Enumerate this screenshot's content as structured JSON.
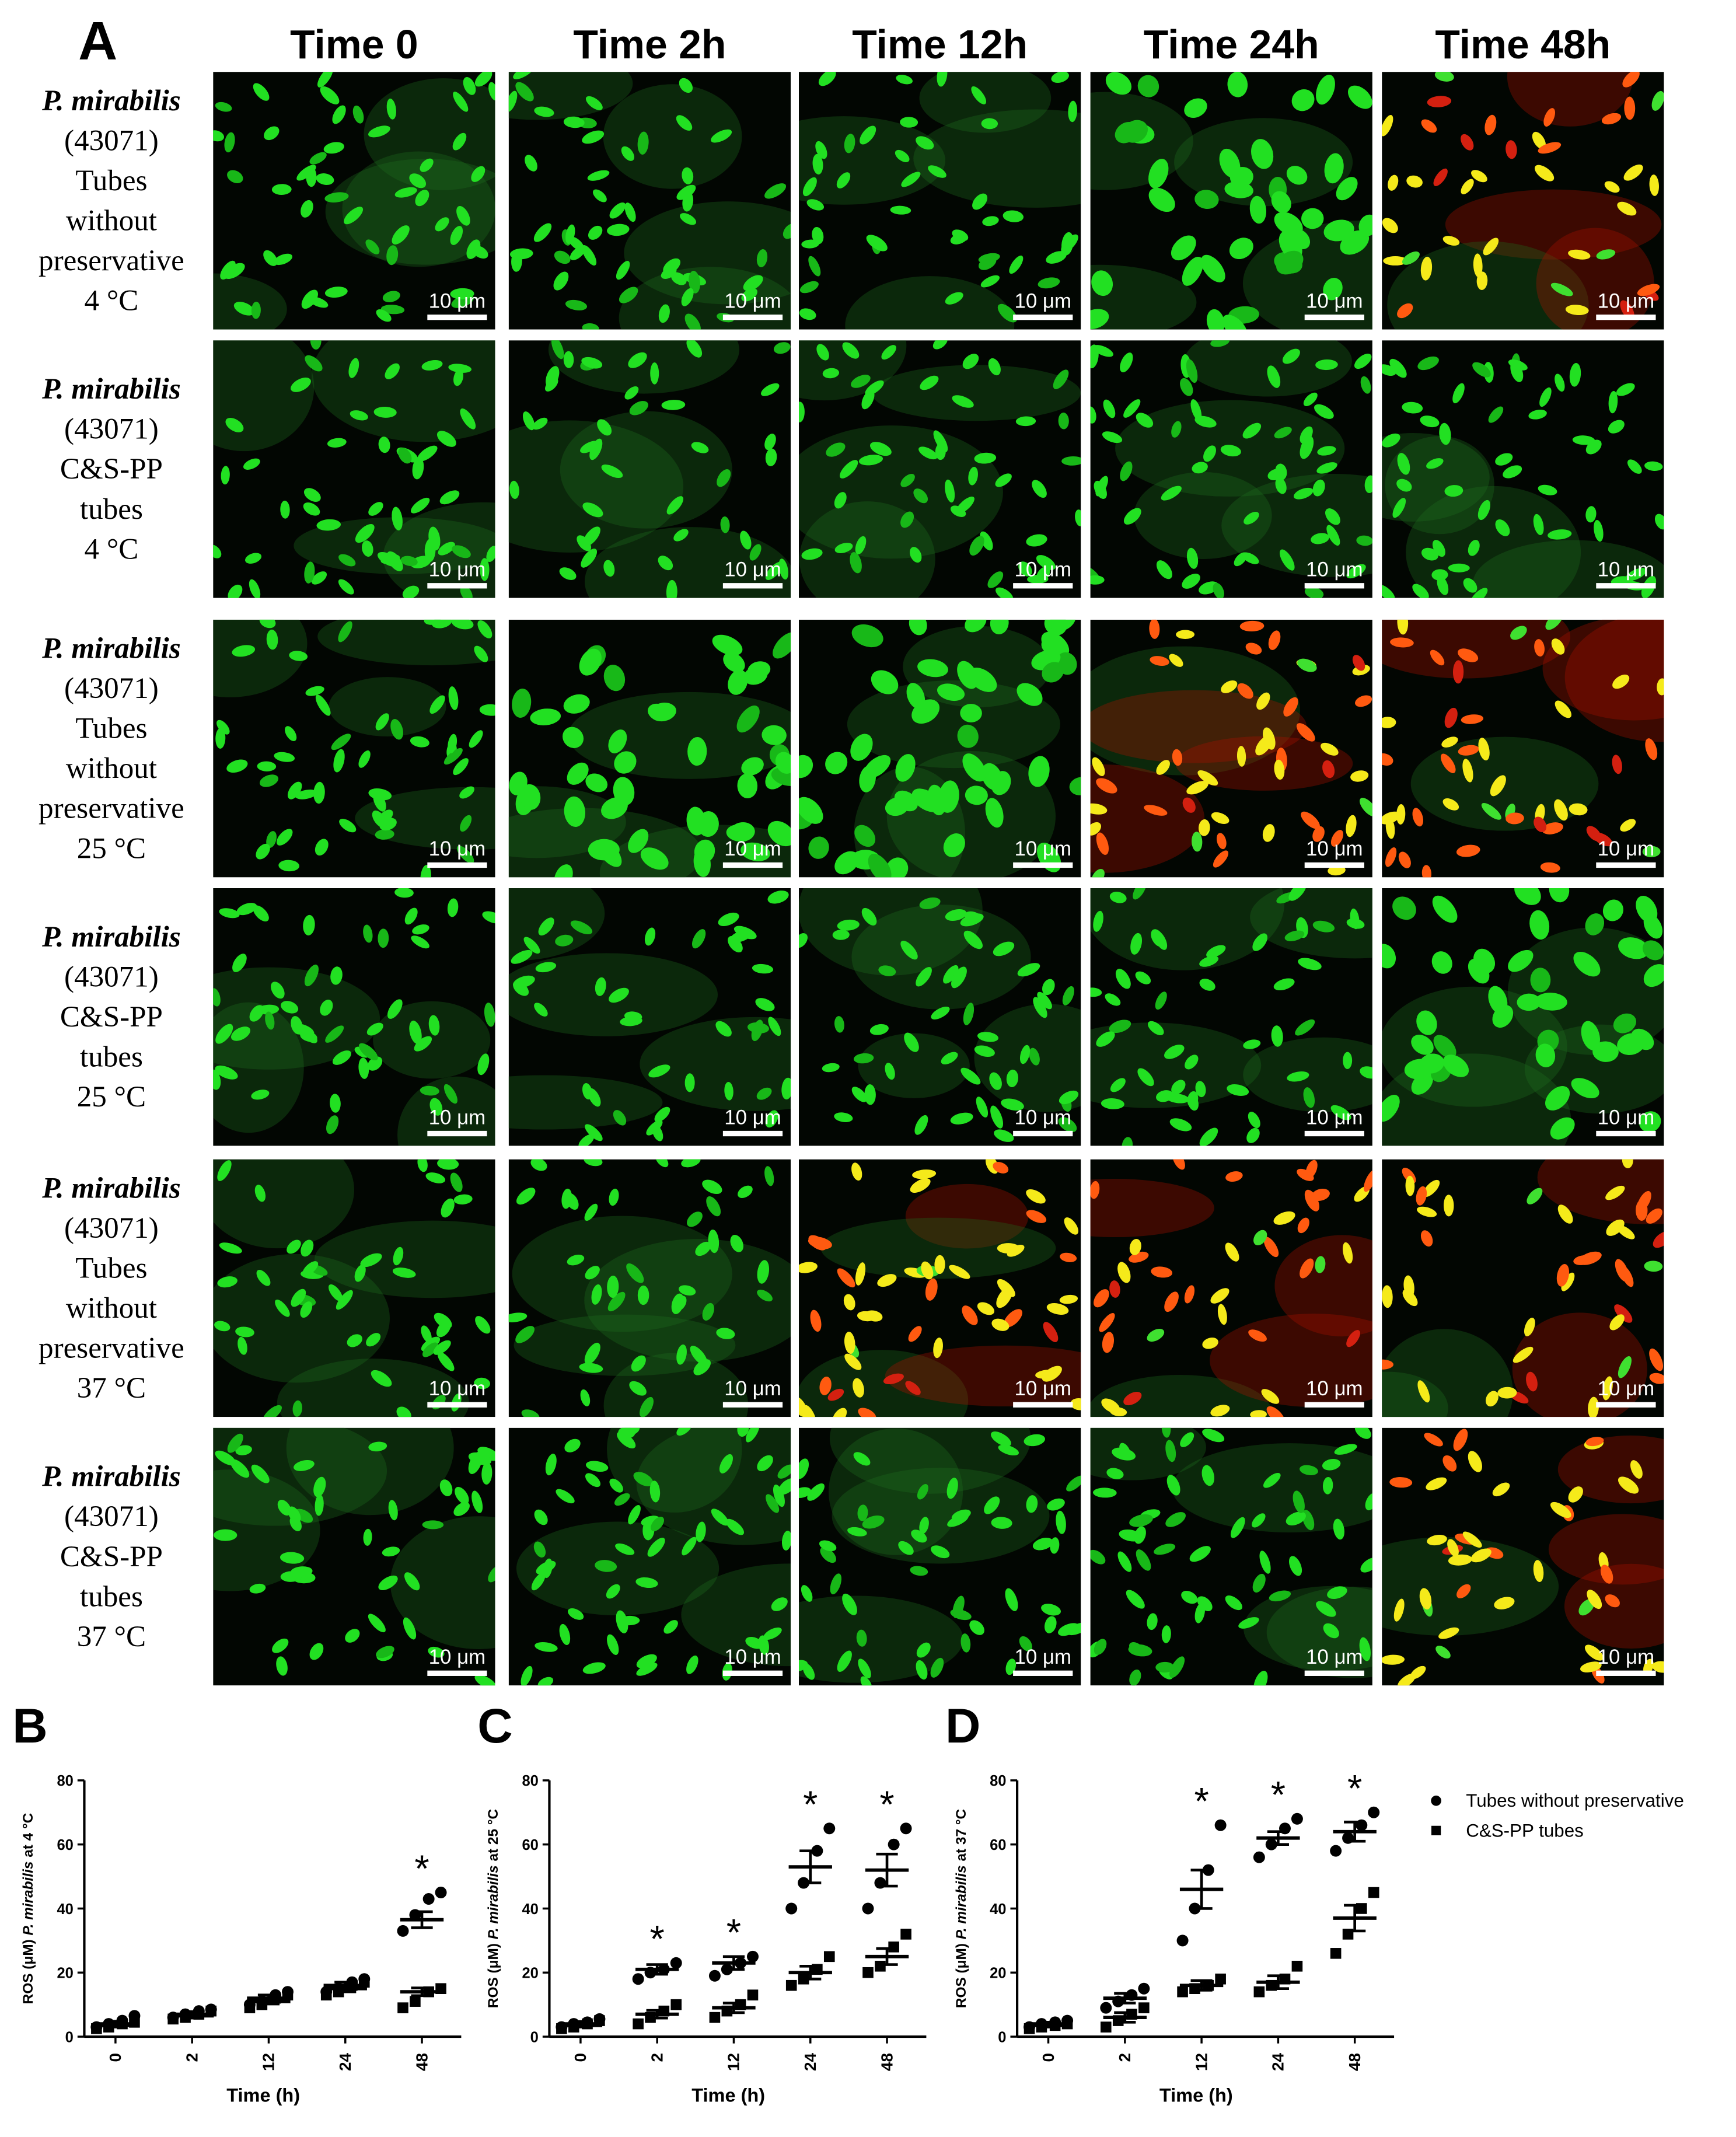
{
  "figure": {
    "panel_label": "A",
    "columns": [
      "Time 0",
      "Time 2h",
      "Time 12h",
      "Time 24h",
      "Time 48h"
    ],
    "rows": [
      [
        "P. mirabilis",
        "(43071)",
        "Tubes",
        "without",
        "preservative",
        "4 °C"
      ],
      [
        "P. mirabilis",
        "(43071)",
        "C&S-PP",
        "tubes",
        "4 °C"
      ],
      [
        "P. mirabilis",
        "(43071)",
        "Tubes",
        "without",
        "preservative",
        "25 °C"
      ],
      [
        "P. mirabilis",
        "(43071)",
        "C&S-PP",
        "tubes",
        "25 °C"
      ],
      [
        "P. mirabilis",
        "(43071)",
        "Tubes",
        "without",
        "preservative",
        "37 °C"
      ],
      [
        "P. mirabilis",
        "(43071)",
        "C&S-PP",
        "tubes",
        "37 °C"
      ]
    ],
    "scale_bar": "10 μm"
  },
  "chart_data": [
    {
      "type": "scatter",
      "panel_label": "B",
      "categories": [
        "0",
        "2",
        "12",
        "24",
        "48"
      ],
      "xlabel": "Time (h)",
      "ylabel": [
        "ROS (μM) ",
        "P. mirabilis",
        " at 4 °C"
      ],
      "ylim": [
        0,
        80
      ],
      "yticks": [
        0,
        20,
        40,
        60,
        80
      ],
      "series": [
        {
          "marker": "circle",
          "color": "#000000",
          "values": [
            4,
            7,
            12,
            16,
            36.5
          ],
          "errors": [
            0.8,
            0.8,
            1,
            1,
            2.5
          ],
          "points": [
            [
              3,
              4,
              5,
              6.5
            ],
            [
              6,
              7,
              8,
              8.5
            ],
            [
              10,
              11,
              13,
              14
            ],
            [
              14,
              15,
              17,
              18
            ],
            [
              33,
              38,
              43,
              45
            ]
          ]
        },
        {
          "marker": "square",
          "color": "#000000",
          "values": [
            3.5,
            6.5,
            11,
            15,
            14
          ],
          "errors": [
            0.5,
            0.7,
            0.8,
            1,
            1.2
          ],
          "points": [
            [
              2.5,
              3,
              4,
              4.5
            ],
            [
              5.5,
              6,
              7,
              8
            ],
            [
              9,
              10,
              12,
              13
            ],
            [
              13,
              14,
              16,
              17
            ],
            [
              9,
              11,
              14,
              15
            ]
          ]
        }
      ],
      "annotations": [
        {
          "category": "48",
          "text": "*"
        }
      ]
    },
    {
      "type": "scatter",
      "panel_label": "C",
      "categories": [
        "0",
        "2",
        "12",
        "24",
        "48"
      ],
      "xlabel": "Time (h)",
      "ylabel": [
        "ROS (μM) ",
        "P. mirabilis",
        " at 25 °C"
      ],
      "ylim": [
        0,
        80
      ],
      "yticks": [
        0,
        20,
        40,
        60,
        80
      ],
      "series": [
        {
          "marker": "circle",
          "color": "#000000",
          "values": [
            4,
            21,
            23,
            53,
            52
          ],
          "errors": [
            0.7,
            1.5,
            2,
            5,
            5
          ],
          "points": [
            [
              3,
              4,
              4.5,
              5.5
            ],
            [
              18,
              20,
              21,
              23
            ],
            [
              19,
              21,
              23,
              25
            ],
            [
              40,
              48,
              58,
              65
            ],
            [
              40,
              48,
              60,
              65
            ]
          ]
        },
        {
          "marker": "square",
          "color": "#000000",
          "values": [
            3.5,
            7,
            9,
            20,
            25
          ],
          "errors": [
            0.5,
            1.2,
            1.5,
            2,
            2.5
          ],
          "points": [
            [
              2.5,
              3,
              4,
              5
            ],
            [
              4,
              6,
              8,
              10
            ],
            [
              6,
              8,
              10,
              13
            ],
            [
              16,
              18,
              21,
              25
            ],
            [
              20,
              22,
              28,
              32
            ]
          ]
        }
      ],
      "annotations": [
        {
          "category": "2",
          "text": "*"
        },
        {
          "category": "12",
          "text": "*"
        },
        {
          "category": "24",
          "text": "*"
        },
        {
          "category": "48",
          "text": "*"
        }
      ]
    },
    {
      "type": "scatter",
      "panel_label": "D",
      "categories": [
        "0",
        "2",
        "12",
        "24",
        "48"
      ],
      "xlabel": "Time (h)",
      "ylabel": [
        "ROS (μM) ",
        "P. mirabilis",
        " at 37 °C"
      ],
      "ylim": [
        0,
        80
      ],
      "yticks": [
        0,
        20,
        40,
        60,
        80
      ],
      "series": [
        {
          "name": "Tubes without preservative",
          "marker": "circle",
          "color": "#000000",
          "values": [
            4,
            12,
            46,
            62,
            64
          ],
          "errors": [
            0.5,
            1.5,
            6,
            2,
            3
          ],
          "points": [
            [
              3,
              4,
              4.5,
              5
            ],
            [
              9,
              11,
              13,
              15
            ],
            [
              30,
              40,
              52,
              66
            ],
            [
              56,
              60,
              65,
              68
            ],
            [
              58,
              62,
              66,
              70
            ]
          ]
        },
        {
          "name": "C&S-PP tubes",
          "marker": "square",
          "color": "#000000",
          "values": [
            3.5,
            6,
            16,
            17,
            37
          ],
          "errors": [
            0.5,
            1.5,
            1.5,
            2,
            4
          ],
          "points": [
            [
              2.5,
              3,
              3.5,
              4
            ],
            [
              3,
              5,
              7,
              9
            ],
            [
              14,
              15,
              16,
              18
            ],
            [
              14,
              16,
              18,
              22
            ],
            [
              26,
              32,
              40,
              45
            ]
          ]
        }
      ],
      "annotations": [
        {
          "category": "12",
          "text": "*"
        },
        {
          "category": "24",
          "text": "*"
        },
        {
          "category": "48",
          "text": "*"
        }
      ],
      "legend": "right"
    }
  ]
}
